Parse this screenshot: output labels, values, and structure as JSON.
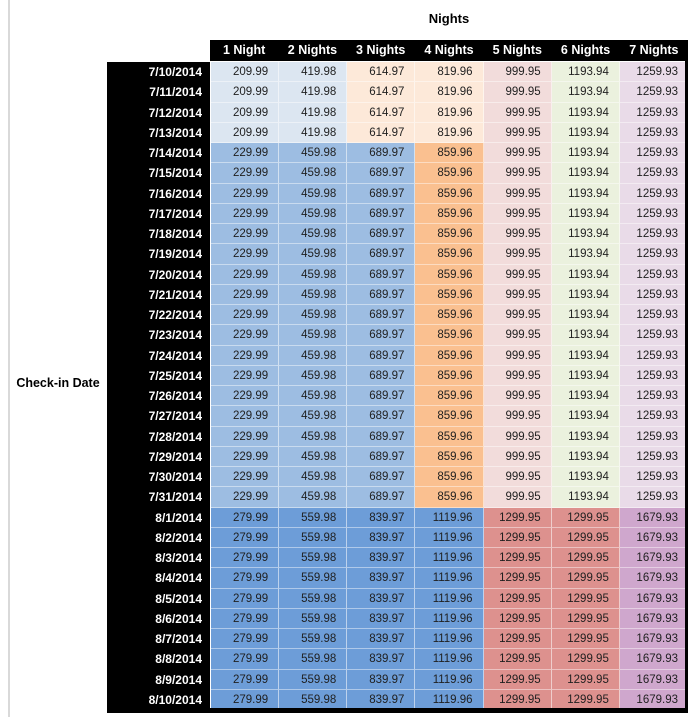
{
  "title": "Nights",
  "row_axis_label": "Check-in Date",
  "columns": [
    "1 Night",
    "2 Nights",
    "3 Nights",
    "4 Nights",
    "5 Nights",
    "6 Nights",
    "7 Nights"
  ],
  "colors": {
    "header_bg": "#000000",
    "header_text": "#ffffff",
    "pale_blue": "#dce6f1",
    "pale_tan": "#fde9d9",
    "pale_pink": "#f2dcdb",
    "pale_green": "#ebf1de",
    "pale_lavender": "#e9dbe8",
    "mid_blue": "#9dbde2",
    "mid_orange": "#fac090",
    "strong_blue": "#6d9dd8",
    "strong_red": "#dd918e",
    "strong_purple": "#cfa7cd"
  },
  "tiers": [
    {
      "name": "early-july-rate",
      "values": [
        "209.99",
        "419.98",
        "614.97",
        "819.96",
        "999.95",
        "1193.94",
        "1259.93"
      ],
      "cell_colors": [
        "pale_blue",
        "pale_blue",
        "pale_tan",
        "pale_tan",
        "pale_pink",
        "pale_green",
        "pale_lavender"
      ]
    },
    {
      "name": "mid-july-rate",
      "values": [
        "229.99",
        "459.98",
        "689.97",
        "859.96",
        "999.95",
        "1193.94",
        "1259.93"
      ],
      "cell_colors": [
        "mid_blue",
        "mid_blue",
        "mid_blue",
        "mid_orange",
        "pale_pink",
        "pale_green",
        "pale_lavender"
      ]
    },
    {
      "name": "august-rate",
      "values": [
        "279.99",
        "559.98",
        "839.97",
        "1119.96",
        "1299.95",
        "1299.95",
        "1679.93"
      ],
      "cell_colors": [
        "strong_blue",
        "strong_blue",
        "strong_blue",
        "strong_blue",
        "strong_red",
        "strong_red",
        "strong_purple"
      ]
    }
  ],
  "rows": [
    {
      "date": "7/10/2014",
      "tier": 0
    },
    {
      "date": "7/11/2014",
      "tier": 0
    },
    {
      "date": "7/12/2014",
      "tier": 0
    },
    {
      "date": "7/13/2014",
      "tier": 0
    },
    {
      "date": "7/14/2014",
      "tier": 1
    },
    {
      "date": "7/15/2014",
      "tier": 1
    },
    {
      "date": "7/16/2014",
      "tier": 1
    },
    {
      "date": "7/17/2014",
      "tier": 1
    },
    {
      "date": "7/18/2014",
      "tier": 1
    },
    {
      "date": "7/19/2014",
      "tier": 1
    },
    {
      "date": "7/20/2014",
      "tier": 1
    },
    {
      "date": "7/21/2014",
      "tier": 1
    },
    {
      "date": "7/22/2014",
      "tier": 1
    },
    {
      "date": "7/23/2014",
      "tier": 1
    },
    {
      "date": "7/24/2014",
      "tier": 1
    },
    {
      "date": "7/25/2014",
      "tier": 1
    },
    {
      "date": "7/26/2014",
      "tier": 1
    },
    {
      "date": "7/27/2014",
      "tier": 1
    },
    {
      "date": "7/28/2014",
      "tier": 1
    },
    {
      "date": "7/29/2014",
      "tier": 1
    },
    {
      "date": "7/30/2014",
      "tier": 1
    },
    {
      "date": "7/31/2014",
      "tier": 1
    },
    {
      "date": "8/1/2014",
      "tier": 2
    },
    {
      "date": "8/2/2014",
      "tier": 2
    },
    {
      "date": "8/3/2014",
      "tier": 2
    },
    {
      "date": "8/4/2014",
      "tier": 2
    },
    {
      "date": "8/5/2014",
      "tier": 2
    },
    {
      "date": "8/6/2014",
      "tier": 2
    },
    {
      "date": "8/7/2014",
      "tier": 2
    },
    {
      "date": "8/8/2014",
      "tier": 2
    },
    {
      "date": "8/9/2014",
      "tier": 2
    },
    {
      "date": "8/10/2014",
      "tier": 2
    }
  ]
}
